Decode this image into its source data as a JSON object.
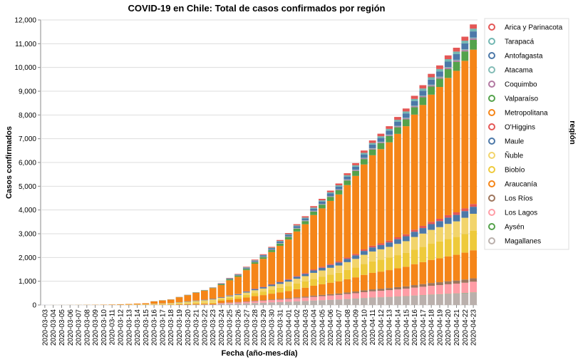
{
  "chart_data": {
    "type": "stacked_bar",
    "title": "COVID-19 en Chile: Total de casos confirmados por región",
    "x_label": "Fecha (año-mes-día)",
    "y_label": "Casos confirmados",
    "legend_title": "región",
    "legend_position": "right",
    "grid": true,
    "ylim": [
      0,
      12000
    ],
    "yticks": [
      0,
      {
        "value": 1000,
        "label": "1,000"
      },
      {
        "value": 2000,
        "label": "2,000"
      },
      {
        "value": 3000,
        "label": "3,000"
      },
      {
        "value": 4000,
        "label": "4,000"
      },
      {
        "value": 5000,
        "label": "5,000"
      },
      {
        "value": 6000,
        "label": "6,000"
      },
      {
        "value": 7000,
        "label": "7,000"
      },
      {
        "value": 8000,
        "label": "8,000"
      },
      {
        "value": 9000,
        "label": "9,000"
      },
      {
        "value": 10000,
        "label": "10,000"
      },
      {
        "value": 11000,
        "label": "11,000"
      },
      {
        "value": 12000,
        "label": "12,000"
      }
    ],
    "categories": [
      "2020-03-03",
      "2020-03-04",
      "2020-03-05",
      "2020-03-06",
      "2020-03-07",
      "2020-03-08",
      "2020-03-09",
      "2020-03-10",
      "2020-03-11",
      "2020-03-12",
      "2020-03-13",
      "2020-03-14",
      "2020-03-15",
      "2020-03-16",
      "2020-03-17",
      "2020-03-18",
      "2020-03-19",
      "2020-03-20",
      "2020-03-21",
      "2020-03-22",
      "2020-03-23",
      "2020-03-24",
      "2020-03-25",
      "2020-03-26",
      "2020-03-27",
      "2020-03-28",
      "2020-03-29",
      "2020-03-30",
      "2020-03-31",
      "2020-04-01",
      "2020-04-02",
      "2020-04-03",
      "2020-04-04",
      "2020-04-05",
      "2020-04-06",
      "2020-04-07",
      "2020-04-08",
      "2020-04-09",
      "2020-04-10",
      "2020-04-11",
      "2020-04-12",
      "2020-04-13",
      "2020-04-14",
      "2020-04-15",
      "2020-04-16",
      "2020-04-17",
      "2020-04-18",
      "2020-04-19",
      "2020-04-20",
      "2020-04-21",
      "2020-04-22",
      "2020-04-23"
    ],
    "series": [
      {
        "name": "Arica y Parinacota",
        "color": "#e45756",
        "values": [
          0,
          0,
          0,
          0,
          0,
          0,
          0,
          0,
          0,
          0,
          0,
          0,
          0,
          1,
          1,
          1,
          2,
          2,
          3,
          3,
          4,
          14,
          17,
          20,
          24,
          29,
          32,
          37,
          41,
          45,
          51,
          56,
          62,
          67,
          72,
          77,
          83,
          90,
          98,
          104,
          108,
          113,
          119,
          124,
          132,
          139,
          146,
          151,
          158,
          162,
          169,
          177
        ]
      },
      {
        "name": "Tarapacá",
        "color": "#72b7b2",
        "values": [
          0,
          0,
          0,
          0,
          0,
          0,
          0,
          0,
          0,
          0,
          0,
          0,
          0,
          1,
          1,
          1,
          2,
          2,
          3,
          3,
          4,
          9,
          11,
          13,
          16,
          19,
          21,
          24,
          27,
          30,
          34,
          37,
          42,
          45,
          48,
          51,
          55,
          60,
          65,
          69,
          72,
          75,
          79,
          83,
          88,
          93,
          97,
          101,
          105,
          108,
          113,
          118
        ]
      },
      {
        "name": "Antofagasta",
        "color": "#4c78a8",
        "values": [
          0,
          0,
          0,
          0,
          0,
          0,
          0,
          0,
          0,
          0,
          0,
          0,
          0,
          2,
          2,
          2,
          3,
          4,
          5,
          6,
          7,
          20,
          25,
          29,
          35,
          42,
          47,
          54,
          60,
          67,
          75,
          82,
          92,
          98,
          106,
          113,
          122,
          131,
          143,
          152,
          159,
          166,
          174,
          182,
          194,
          204,
          214,
          222,
          231,
          238,
          249,
          260
        ]
      },
      {
        "name": "Atacama",
        "color": "#83bcb6",
        "values": [
          0,
          0,
          0,
          0,
          0,
          0,
          0,
          0,
          0,
          0,
          0,
          0,
          0,
          0,
          0,
          0,
          0,
          0,
          0,
          0,
          0,
          3,
          3,
          4,
          5,
          6,
          6,
          7,
          8,
          9,
          10,
          11,
          12,
          13,
          14,
          15,
          17,
          18,
          20,
          21,
          22,
          23,
          24,
          25,
          26,
          28,
          29,
          30,
          32,
          32,
          34,
          35
        ]
      },
      {
        "name": "Coquimbo",
        "color": "#b279a2",
        "values": [
          0,
          0,
          0,
          0,
          0,
          0,
          0,
          0,
          0,
          0,
          0,
          0,
          0,
          1,
          1,
          1,
          2,
          2,
          3,
          3,
          4,
          5,
          6,
          7,
          8,
          10,
          11,
          12,
          14,
          15,
          17,
          19,
          21,
          22,
          24,
          26,
          28,
          30,
          33,
          35,
          36,
          38,
          40,
          41,
          44,
          46,
          49,
          50,
          53,
          54,
          56,
          59
        ]
      },
      {
        "name": "Valparaíso",
        "color": "#54a24b",
        "values": [
          0,
          0,
          0,
          0,
          0,
          0,
          0,
          0,
          0,
          0,
          0,
          0,
          0,
          3,
          4,
          5,
          7,
          9,
          11,
          13,
          15,
          32,
          40,
          46,
          56,
          67,
          75,
          86,
          96,
          106,
          119,
          131,
          146,
          156,
          169,
          179,
          194,
          209,
          228,
          242,
          252,
          263,
          277,
          290,
          308,
          324,
          341,
          353,
          368,
          379,
          395,
          413
        ]
      },
      {
        "name": "Metropolitana",
        "color": "#f58518",
        "values": [
          0,
          1,
          1,
          2,
          3,
          5,
          7,
          10,
          14,
          20,
          26,
          36,
          44,
          94,
          121,
          143,
          205,
          260,
          322,
          379,
          448,
          507,
          628,
          718,
          886,
          1050,
          1176,
          1347,
          1506,
          1667,
          1872,
          2055,
          2289,
          2459,
          2648,
          2814,
          3050,
          3285,
          3576,
          3810,
          3967,
          4139,
          4354,
          4550,
          4844,
          5089,
          5352,
          5548,
          5779,
          5958,
          6213,
          6497
        ]
      },
      {
        "name": "O'Higgins",
        "color": "#e45756",
        "values": [
          0,
          0,
          0,
          0,
          0,
          0,
          0,
          0,
          0,
          0,
          0,
          0,
          0,
          2,
          2,
          2,
          3,
          4,
          5,
          6,
          7,
          9,
          11,
          13,
          16,
          19,
          21,
          24,
          27,
          30,
          34,
          37,
          42,
          45,
          48,
          51,
          55,
          60,
          65,
          69,
          72,
          75,
          79,
          83,
          88,
          93,
          97,
          101,
          105,
          108,
          113,
          118
        ]
      },
      {
        "name": "Maule",
        "color": "#4c78a8",
        "values": [
          1,
          1,
          1,
          1,
          1,
          1,
          1,
          1,
          1,
          2,
          2,
          2,
          2,
          5,
          6,
          7,
          10,
          13,
          16,
          19,
          22,
          23,
          29,
          33,
          40,
          48,
          53,
          61,
          68,
          76,
          85,
          93,
          104,
          112,
          120,
          128,
          139,
          149,
          163,
          173,
          180,
          188,
          198,
          207,
          220,
          231,
          243,
          252,
          263,
          271,
          282,
          295
        ]
      },
      {
        "name": "Ñuble",
        "color": "#f2d46b",
        "values": [
          0,
          1,
          2,
          2,
          3,
          4,
          5,
          6,
          8,
          10,
          13,
          19,
          24,
          28,
          36,
          43,
          62,
          78,
          97,
          114,
          134,
          55,
          69,
          78,
          97,
          115,
          128,
          147,
          164,
          182,
          204,
          224,
          250,
          268,
          289,
          307,
          333,
          358,
          390,
          416,
          433,
          452,
          475,
          496,
          528,
          555,
          584,
          605,
          630,
          650,
          678,
          709
        ]
      },
      {
        "name": "Biobío",
        "color": "#eeca3b",
        "values": [
          0,
          0,
          0,
          0,
          0,
          0,
          0,
          0,
          0,
          1,
          1,
          2,
          2,
          8,
          10,
          12,
          17,
          22,
          27,
          32,
          37,
          65,
          80,
          91,
          113,
          134,
          150,
          171,
          192,
          212,
          238,
          262,
          291,
          313,
          337,
          358,
          388,
          418,
          455,
          485,
          505,
          527,
          554,
          579,
          616,
          648,
          681,
          706,
          735,
          758,
          791,
          827
        ]
      },
      {
        "name": "Araucanía",
        "color": "#f58518",
        "values": [
          0,
          0,
          0,
          0,
          0,
          0,
          0,
          0,
          0,
          0,
          1,
          1,
          2,
          8,
          10,
          12,
          17,
          22,
          27,
          32,
          37,
          92,
          114,
          131,
          161,
          191,
          214,
          245,
          274,
          303,
          340,
          374,
          416,
          447,
          482,
          512,
          555,
          597,
          650,
          693,
          721,
          753,
          792,
          827,
          881,
          925,
          973,
          1009,
          1051,
          1083,
          1130,
          1181
        ]
      },
      {
        "name": "Los Ríos",
        "color": "#9d755d",
        "values": [
          0,
          0,
          0,
          0,
          0,
          0,
          0,
          0,
          0,
          0,
          0,
          0,
          0,
          3,
          4,
          5,
          7,
          9,
          11,
          13,
          15,
          11,
          14,
          16,
          19,
          23,
          26,
          29,
          33,
          36,
          41,
          45,
          50,
          54,
          58,
          61,
          67,
          72,
          78,
          83,
          87,
          90,
          95,
          99,
          106,
          111,
          117,
          121,
          126,
          130,
          136,
          142
        ]
      },
      {
        "name": "Los Lagos",
        "color": "#ff9da6",
        "values": [
          0,
          0,
          0,
          0,
          0,
          0,
          0,
          0,
          0,
          0,
          0,
          0,
          0,
          2,
          2,
          2,
          3,
          4,
          5,
          6,
          7,
          35,
          43,
          50,
          61,
          73,
          81,
          93,
          104,
          115,
          129,
          142,
          158,
          170,
          183,
          194,
          211,
          227,
          247,
          263,
          274,
          286,
          301,
          314,
          335,
          352,
          370,
          383,
          399,
          412,
          429,
          449
        ]
      },
      {
        "name": "Aysén",
        "color": "#54a24b",
        "values": [
          0,
          0,
          0,
          0,
          0,
          0,
          0,
          0,
          0,
          0,
          0,
          0,
          0,
          0,
          0,
          0,
          0,
          0,
          0,
          0,
          0,
          1,
          1,
          1,
          2,
          2,
          2,
          2,
          3,
          3,
          3,
          4,
          4,
          4,
          5,
          5,
          6,
          6,
          7,
          7,
          7,
          8,
          8,
          8,
          9,
          9,
          10,
          10,
          11,
          11,
          11,
          12
        ]
      },
      {
        "name": "Magallanes",
        "color": "#bab0ac",
        "values": [
          0,
          0,
          0,
          0,
          0,
          0,
          0,
          0,
          0,
          0,
          0,
          0,
          0,
          1,
          1,
          1,
          2,
          2,
          3,
          3,
          4,
          41,
          50,
          57,
          71,
          84,
          94,
          108,
          120,
          133,
          150,
          164,
          183,
          197,
          212,
          225,
          244,
          263,
          286,
          305,
          317,
          331,
          348,
          364,
          388,
          407,
          428,
          444,
          462,
          477,
          497,
          520
        ]
      }
    ]
  }
}
